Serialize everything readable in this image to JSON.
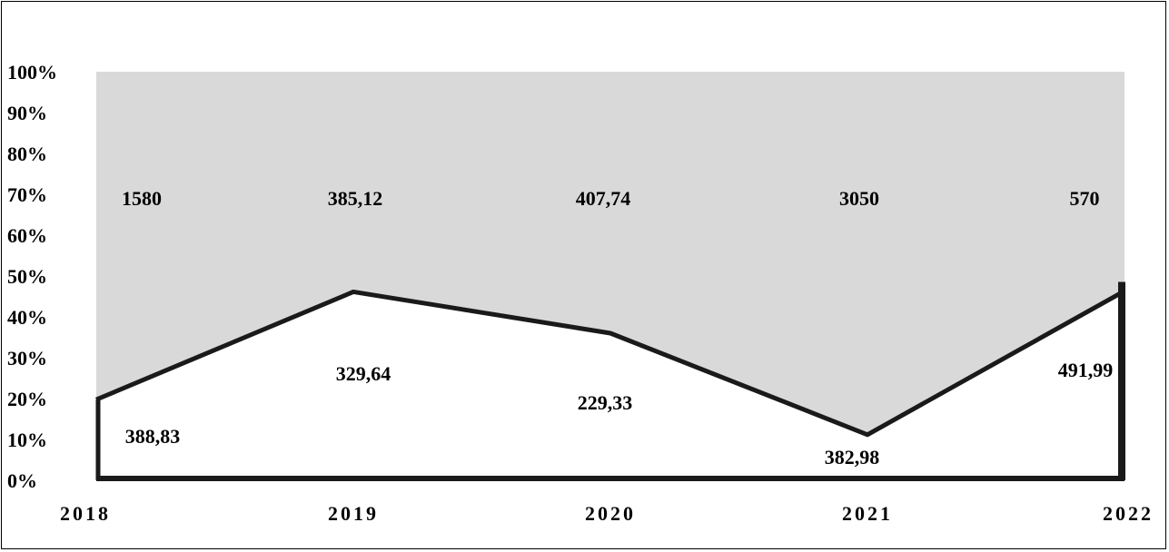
{
  "chart_data": {
    "type": "area",
    "stacked": "percent",
    "title": "",
    "xlabel": "",
    "ylabel": "",
    "categories": [
      "2018",
      "2019",
      "2020",
      "2021",
      "2022"
    ],
    "y_ticks": [
      "0%",
      "10%",
      "20%",
      "30%",
      "40%",
      "50%",
      "60%",
      "70%",
      "80%",
      "90%",
      "100%"
    ],
    "ylim": [
      0,
      100
    ],
    "grid": false,
    "legend": "none",
    "series": [
      {
        "fill": "#ffffff",
        "values": [
          388.83,
          329.64,
          229.33,
          382.98,
          491.99
        ],
        "labels": [
          "388,83",
          "329,64",
          "229,33",
          "382,98",
          "491,99"
        ]
      },
      {
        "fill": "#d9d9d9",
        "values": [
          1580,
          385.12,
          407.74,
          3050,
          570
        ],
        "labels": [
          "1580",
          "385,12",
          "407,74",
          "3050",
          "570"
        ]
      }
    ],
    "colors": {
      "outline": "#1a1a1a",
      "background": "#ffffff"
    }
  }
}
